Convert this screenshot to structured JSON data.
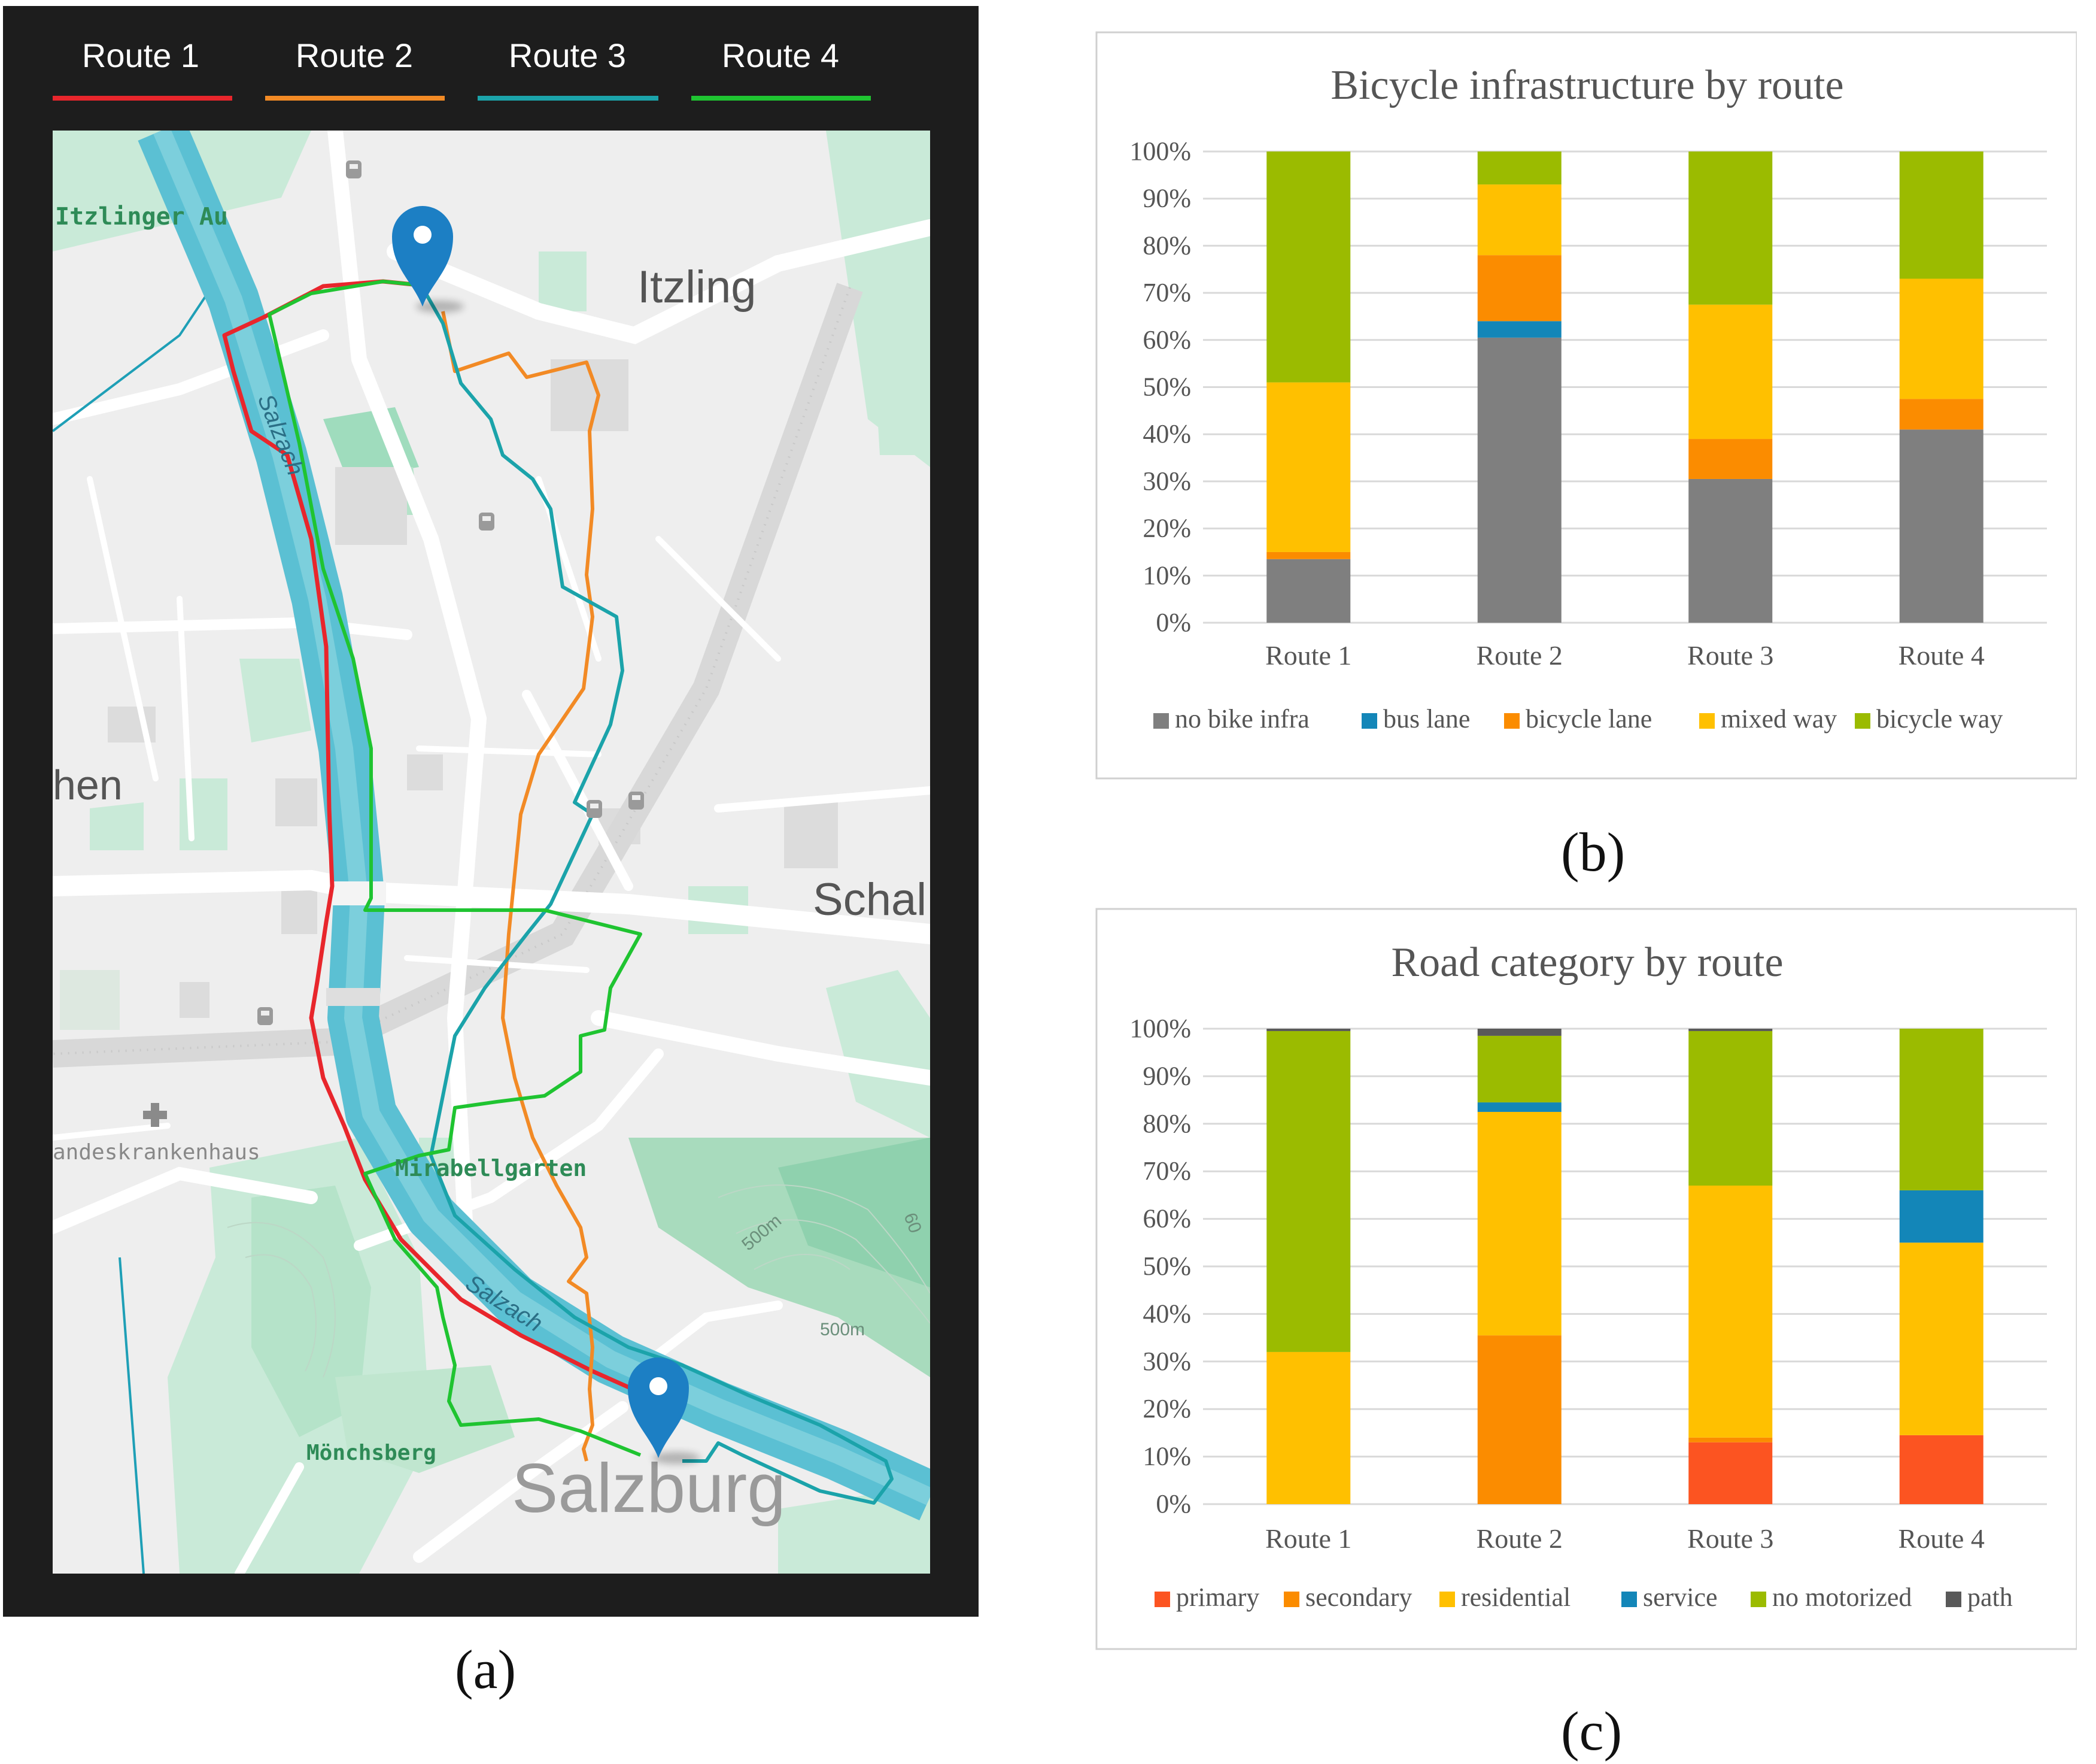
{
  "panels": {
    "a": "(a)",
    "b": "(b)",
    "c": "(c)"
  },
  "map": {
    "tabs": [
      {
        "label": "Route 1",
        "color": "#e8262c"
      },
      {
        "label": "Route 2",
        "color": "#f28a25"
      },
      {
        "label": "Route 3",
        "color": "#1ba3aa"
      },
      {
        "label": "Route 4",
        "color": "#1fc431"
      }
    ],
    "places": {
      "itzlinger_au": "Itzlinger Au",
      "itzling": "Itzling",
      "hen": "hen",
      "schal": "Schal",
      "landeskrankenhaus": "andeskrankenhaus",
      "mirabellgarten": "Mirabellgarten",
      "moenchsberg": "Mönchsberg",
      "salzburg": "Salzburg",
      "salzach_upper": "Salzach",
      "salzach_lower": "Salzach",
      "elev_1": "500m",
      "elev_2": "500m",
      "elev_3": "60"
    },
    "colors": {
      "frame": "#1d1d1d",
      "land": "#eeeeee",
      "river": "#5bc0d3",
      "park": "#c9ead8",
      "street": "#ffffff",
      "pin": "#1c7fc4"
    }
  },
  "chart_data": [
    {
      "type": "bar",
      "stacked": true,
      "title": "Bicycle infrastructure by route",
      "categories": [
        "Route 1",
        "Route 2",
        "Route 3",
        "Route 4"
      ],
      "ylim": [
        0,
        100
      ],
      "yticks": [
        "0%",
        "10%",
        "20%",
        "30%",
        "40%",
        "50%",
        "60%",
        "70%",
        "80%",
        "90%",
        "100%"
      ],
      "legend_position": "bottom",
      "series": [
        {
          "name": "no bike infra",
          "color": "#7f7f7f",
          "values": [
            13.5,
            60.5,
            30.5,
            41
          ]
        },
        {
          "name": "bus lane",
          "color": "#1386b8",
          "values": [
            0,
            3.5,
            0,
            0
          ]
        },
        {
          "name": "bicycle lane",
          "color": "#fb8c00",
          "values": [
            1.5,
            14,
            8.5,
            6.5
          ]
        },
        {
          "name": "mixed way",
          "color": "#ffc000",
          "values": [
            36,
            15,
            28.5,
            25.5
          ]
        },
        {
          "name": "bicycle way",
          "color": "#9bbb00",
          "values": [
            49,
            7,
            32.5,
            27
          ]
        }
      ]
    },
    {
      "type": "bar",
      "stacked": true,
      "title": "Road category by route",
      "categories": [
        "Route 1",
        "Route 2",
        "Route 3",
        "Route 4"
      ],
      "ylim": [
        0,
        100
      ],
      "yticks": [
        "0%",
        "10%",
        "20%",
        "30%",
        "40%",
        "50%",
        "60%",
        "70%",
        "80%",
        "90%",
        "100%"
      ],
      "legend_position": "bottom",
      "series": [
        {
          "name": "primary",
          "color": "#fc5421",
          "values": [
            0,
            0,
            13,
            14.5
          ]
        },
        {
          "name": "secondary",
          "color": "#fb8c00",
          "values": [
            0,
            35.5,
            1,
            0
          ]
        },
        {
          "name": "residential",
          "color": "#ffc000",
          "values": [
            32,
            47,
            53,
            40.5
          ]
        },
        {
          "name": "service",
          "color": "#1386b8",
          "values": [
            0,
            2,
            0,
            11
          ]
        },
        {
          "name": "no motorized",
          "color": "#9bbb00",
          "values": [
            67.5,
            14,
            32.5,
            34
          ]
        },
        {
          "name": "path",
          "color": "#595959",
          "values": [
            0.5,
            1.5,
            0.5,
            0
          ]
        }
      ]
    }
  ]
}
